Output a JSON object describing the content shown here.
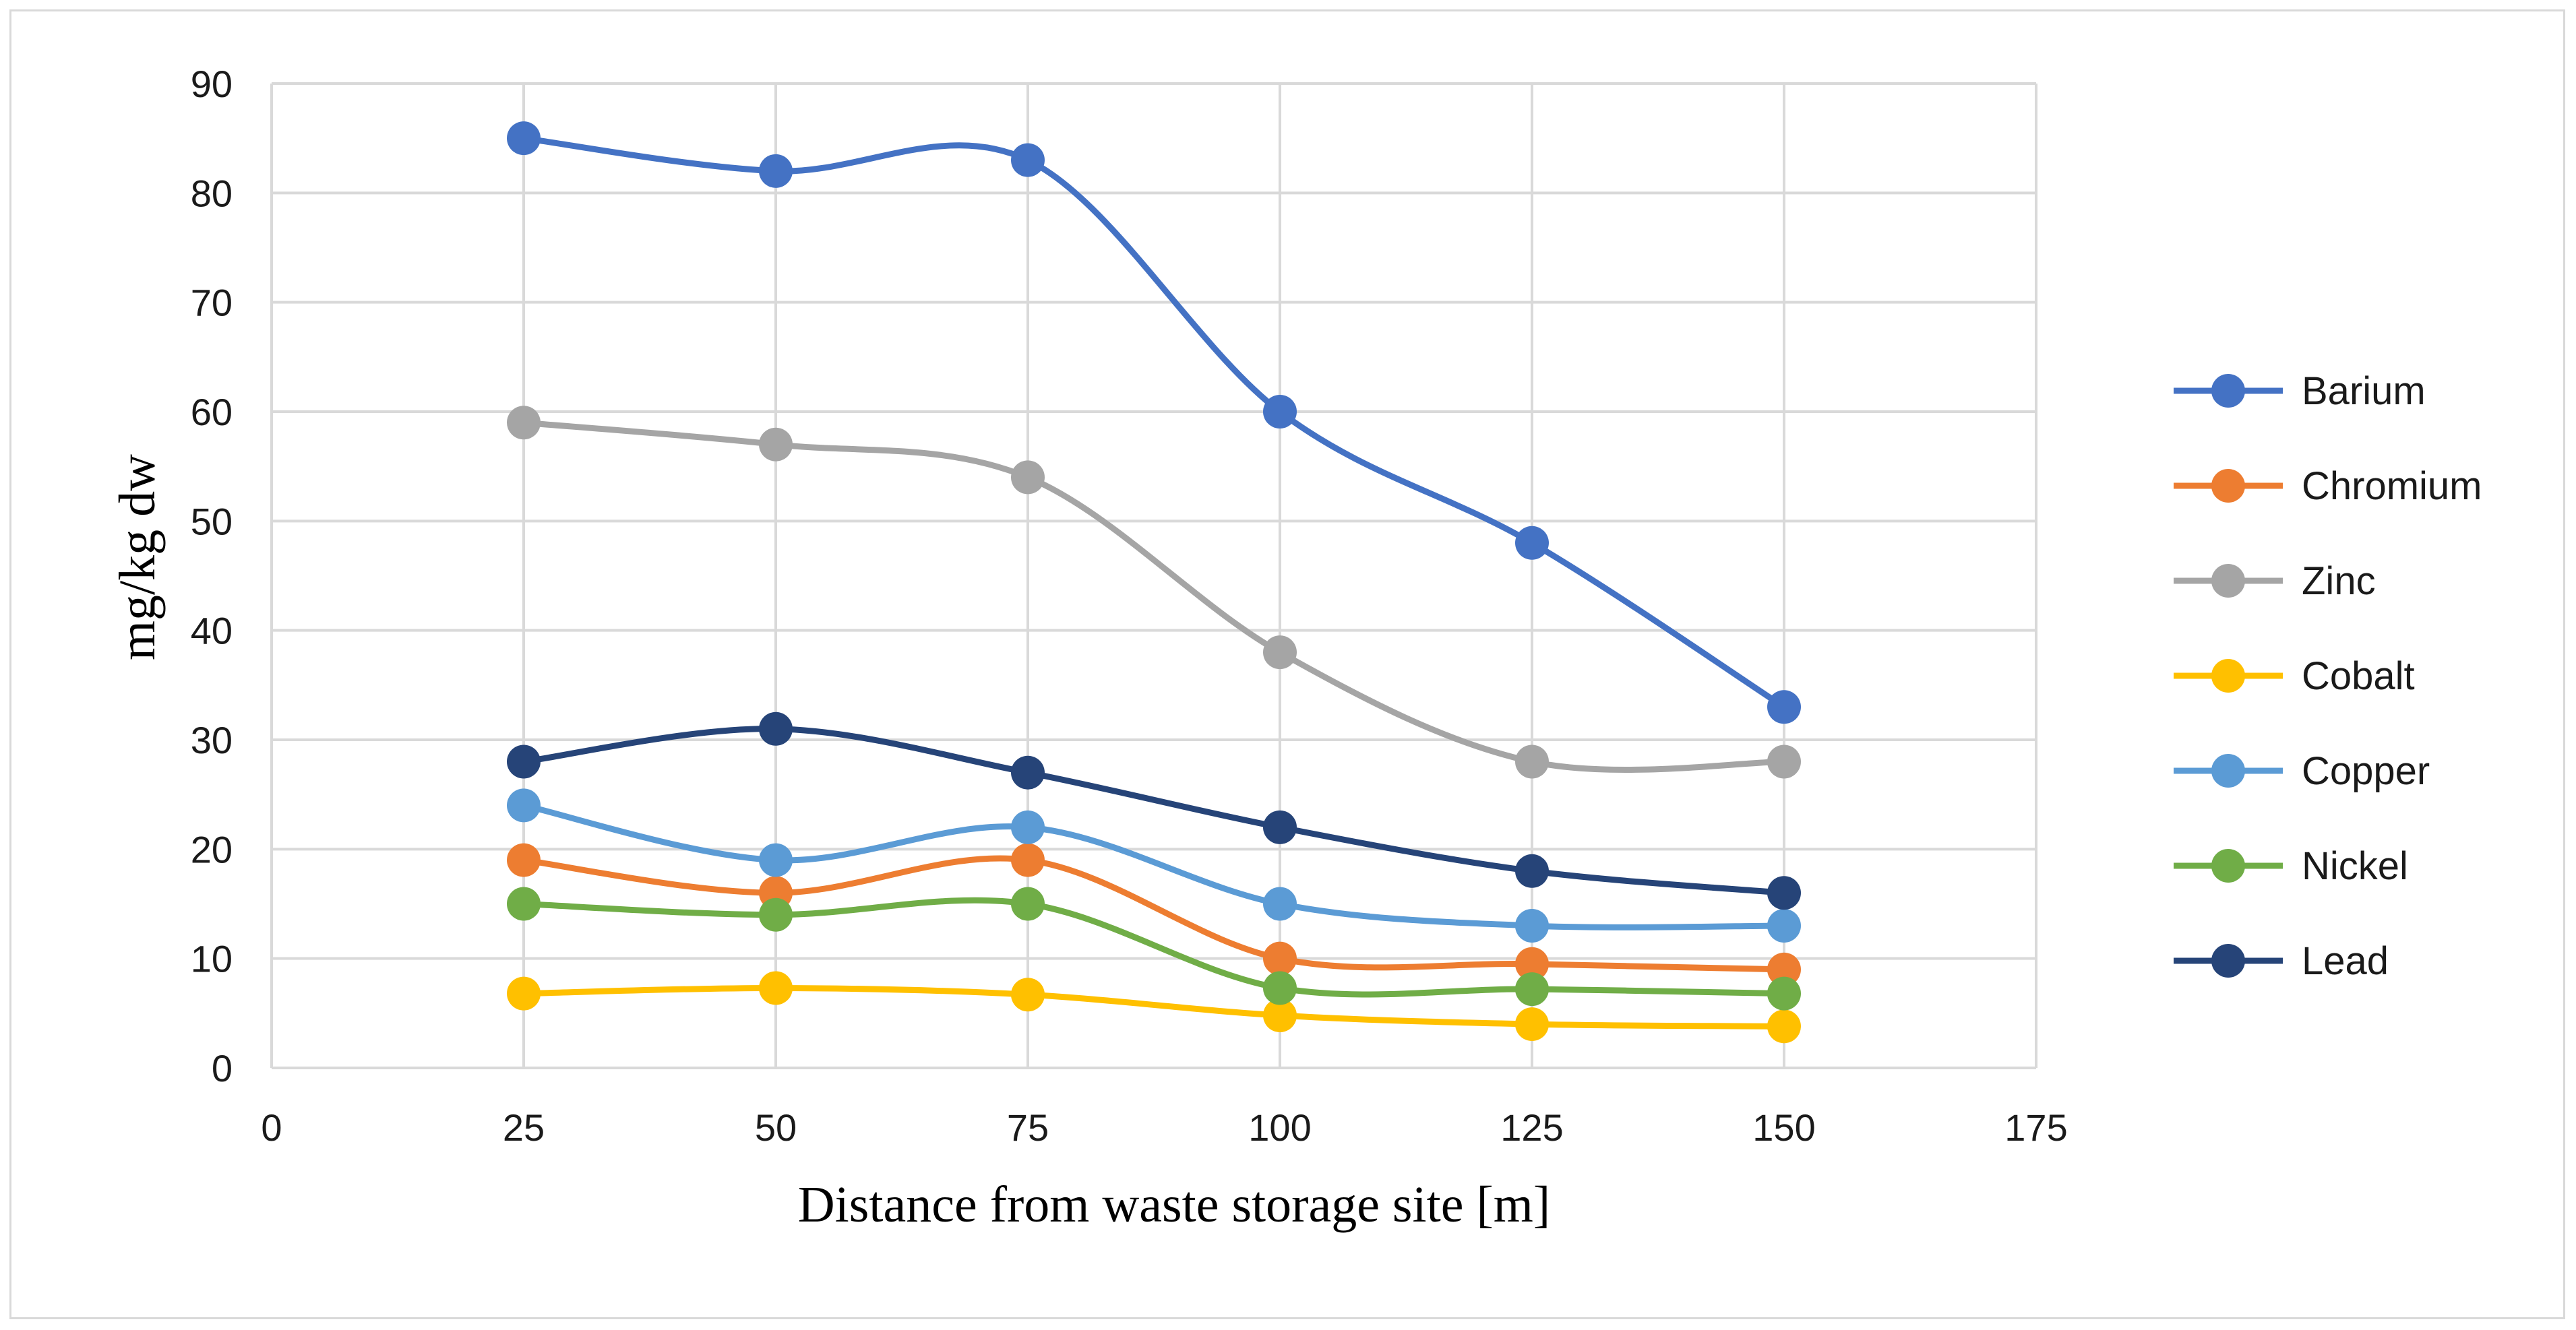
{
  "chart_data": {
    "type": "line",
    "title": "",
    "xlabel": "Distance from waste storage site [m]",
    "ylabel": "mg/kg dw",
    "xlim": [
      0,
      175
    ],
    "ylim": [
      0,
      90
    ],
    "x_ticks": [
      0,
      25,
      50,
      75,
      100,
      125,
      150,
      175
    ],
    "y_ticks": [
      0,
      10,
      20,
      30,
      40,
      50,
      60,
      70,
      80,
      90
    ],
    "grid": true,
    "smooth": true,
    "legend_position": "right",
    "x": [
      25,
      50,
      75,
      100,
      125,
      150
    ],
    "series": [
      {
        "name": "Barium",
        "color": "#4472C4",
        "values": [
          85,
          82,
          83,
          60,
          48,
          33
        ]
      },
      {
        "name": "Chromium",
        "color": "#ED7D31",
        "values": [
          19,
          16,
          19,
          10,
          9.5,
          9
        ]
      },
      {
        "name": "Zinc",
        "color": "#A5A5A5",
        "values": [
          59,
          57,
          54,
          38,
          28,
          28
        ]
      },
      {
        "name": "Cobalt",
        "color": "#FFC000",
        "values": [
          6.8,
          7.3,
          6.7,
          4.8,
          4,
          3.8
        ]
      },
      {
        "name": "Copper",
        "color": "#5B9BD5",
        "values": [
          24,
          19,
          22,
          15,
          13,
          13
        ]
      },
      {
        "name": "Nickel",
        "color": "#70AD47",
        "values": [
          15,
          14,
          15,
          7.3,
          7.2,
          6.8
        ]
      },
      {
        "name": "Lead",
        "color": "#264478",
        "values": [
          28,
          31,
          27,
          22,
          18,
          16
        ]
      }
    ]
  }
}
